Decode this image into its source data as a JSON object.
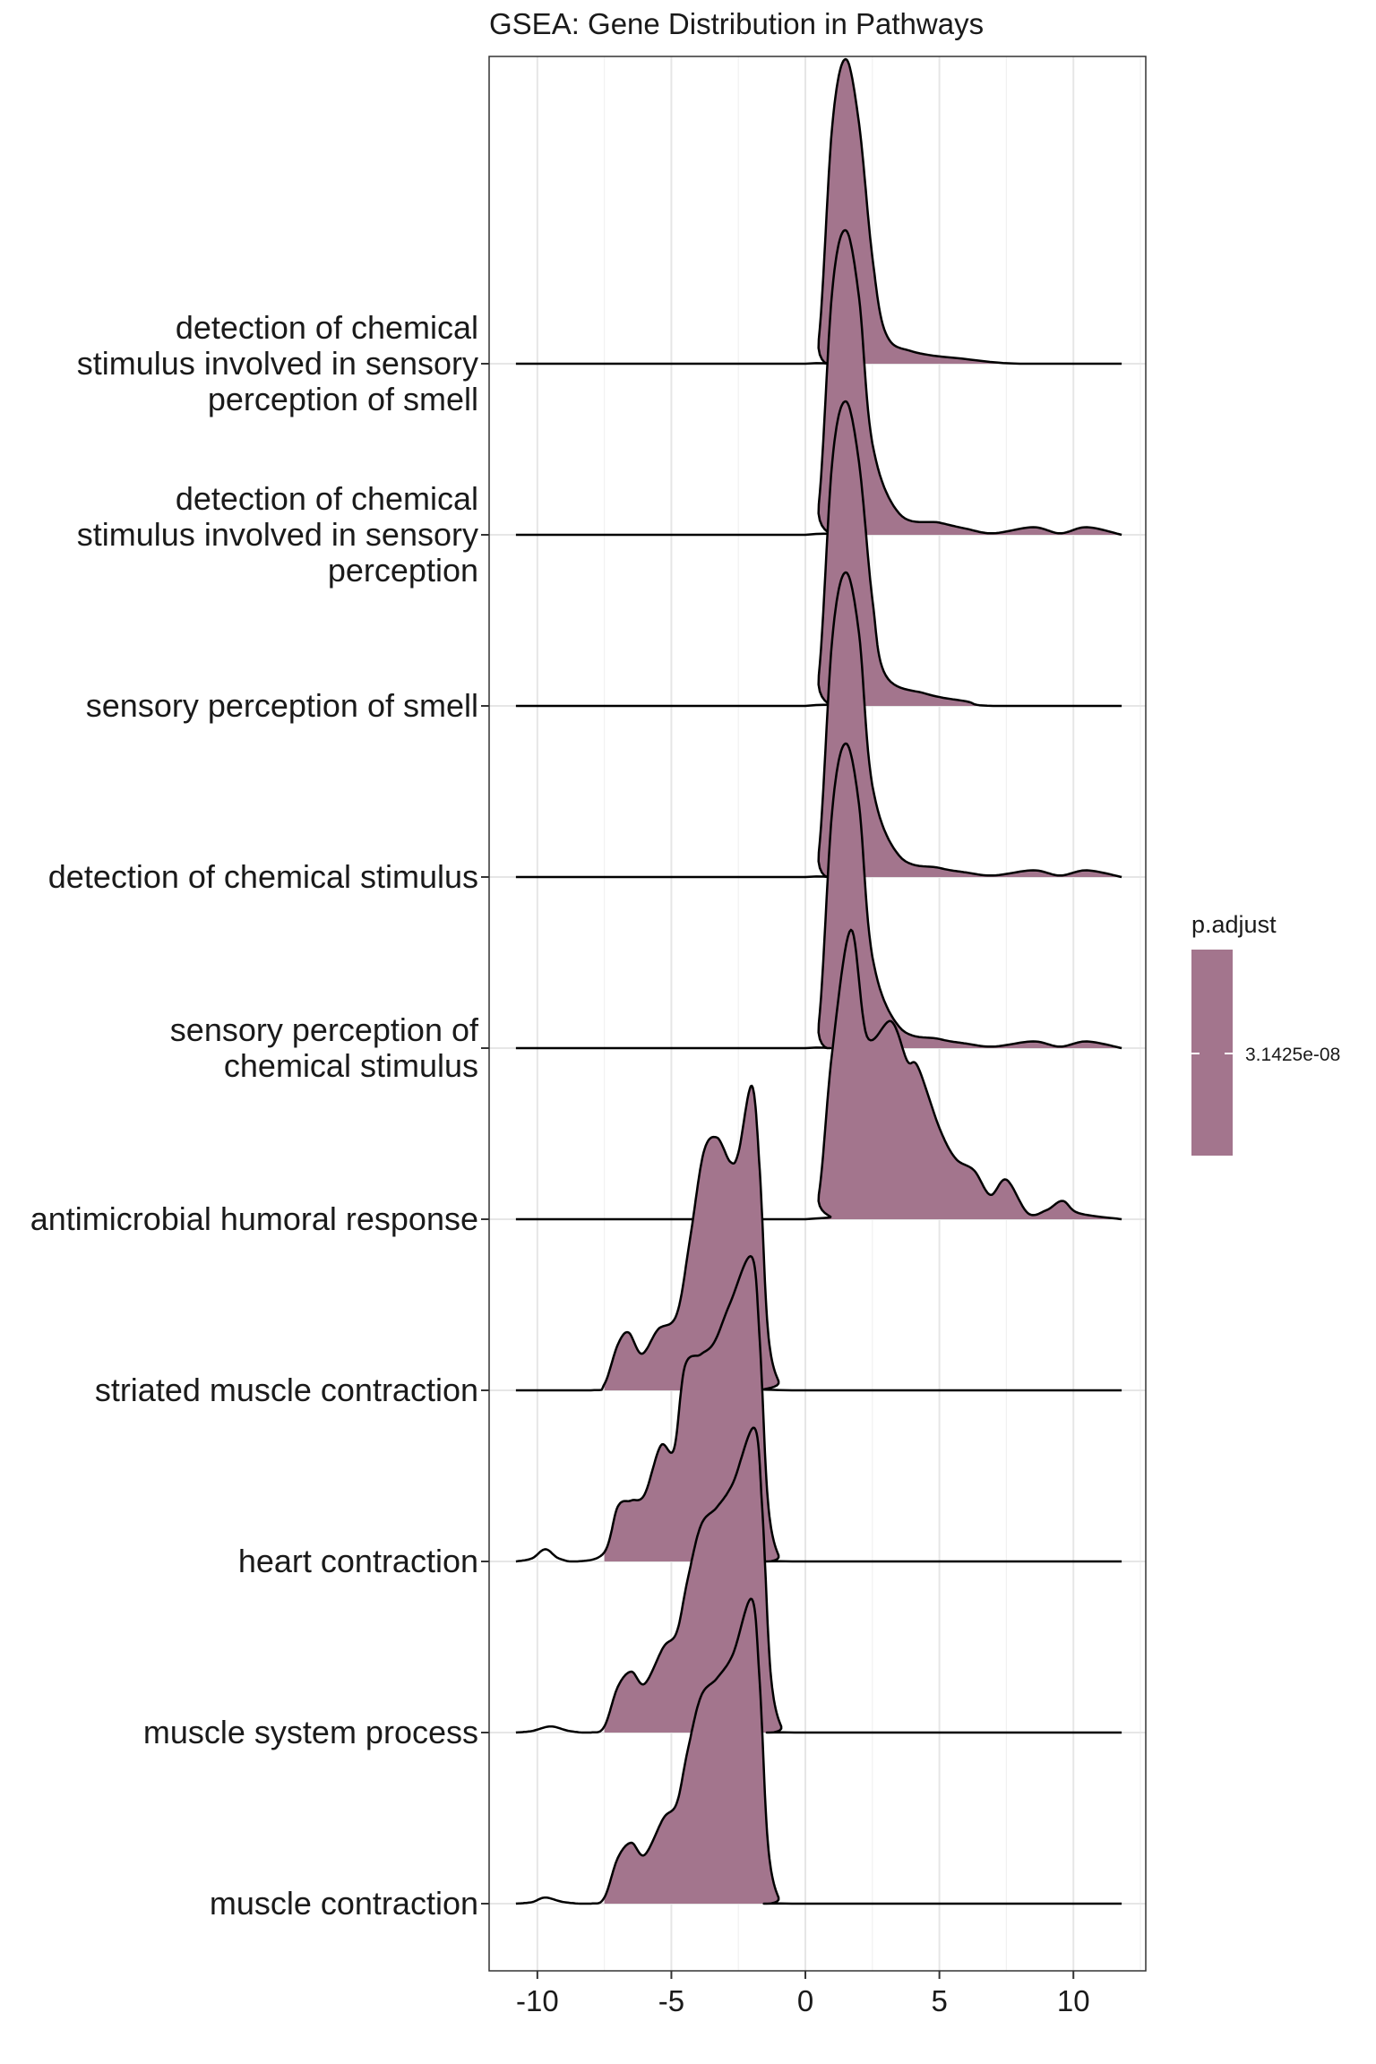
{
  "chart_data": {
    "type": "ridgeline",
    "title": "GSEA: Gene Distribution in Pathways",
    "xlabel": "",
    "ylabel": "",
    "xlim": [
      -11.8,
      12.7
    ],
    "x_ticks": [
      -10,
      -5,
      0,
      5,
      10
    ],
    "x_tick_labels": [
      "-10",
      "-5",
      "0",
      "5",
      "10"
    ],
    "grid": true,
    "fill_color": "#A3758D",
    "legend": {
      "title": "p.adjust",
      "tick_label": "3.1425e-08",
      "placement": "right"
    },
    "rows": [
      {
        "label_lines": [
          "detection of chemical",
          "stimulus involved in sensory",
          "perception of smell"
        ],
        "range": [
          -10.8,
          11.8
        ],
        "fill_range": [
          0,
          11.8
        ],
        "density": [
          [
            -10.8,
            0
          ],
          [
            0,
            0
          ],
          [
            0.5,
            0.08
          ],
          [
            1.0,
            0.78
          ],
          [
            1.5,
            1.0
          ],
          [
            2.0,
            0.79
          ],
          [
            2.5,
            0.35
          ],
          [
            3.0,
            0.1
          ],
          [
            4.0,
            0.04
          ],
          [
            6.0,
            0.015
          ],
          [
            8.0,
            0
          ],
          [
            11.8,
            0
          ]
        ]
      },
      {
        "label_lines": [
          "detection of chemical",
          "stimulus involved in sensory",
          "perception"
        ],
        "range": [
          -10.8,
          11.8
        ],
        "fill_range": [
          0,
          11.8
        ],
        "density": [
          [
            -10.8,
            0
          ],
          [
            0,
            0
          ],
          [
            0.5,
            0.1
          ],
          [
            1.0,
            0.8
          ],
          [
            1.5,
            1.0
          ],
          [
            2.0,
            0.78
          ],
          [
            2.5,
            0.3
          ],
          [
            3.5,
            0.07
          ],
          [
            5.0,
            0.04
          ],
          [
            6.0,
            0.02
          ],
          [
            7.0,
            0.005
          ],
          [
            8.5,
            0.025
          ],
          [
            9.5,
            0.005
          ],
          [
            10.5,
            0.025
          ],
          [
            11.8,
            0
          ]
        ]
      },
      {
        "label_lines": [
          "sensory perception of smell"
        ],
        "range": [
          -10.8,
          11.8
        ],
        "fill_range": [
          0,
          11.8
        ],
        "density": [
          [
            -10.8,
            0
          ],
          [
            0,
            0
          ],
          [
            0.5,
            0.1
          ],
          [
            1.0,
            0.8
          ],
          [
            1.5,
            1.0
          ],
          [
            2.0,
            0.8
          ],
          [
            2.5,
            0.35
          ],
          [
            3.0,
            0.1
          ],
          [
            4.5,
            0.04
          ],
          [
            6.0,
            0.015
          ],
          [
            7.0,
            0
          ],
          [
            11.8,
            0
          ]
        ]
      },
      {
        "label_lines": [
          "detection of chemical stimulus"
        ],
        "range": [
          -10.8,
          11.8
        ],
        "fill_range": [
          0,
          11.8
        ],
        "density": [
          [
            -10.8,
            0
          ],
          [
            0,
            0
          ],
          [
            0.5,
            0.08
          ],
          [
            1.0,
            0.78
          ],
          [
            1.5,
            1.0
          ],
          [
            2.0,
            0.8
          ],
          [
            2.5,
            0.3
          ],
          [
            3.5,
            0.07
          ],
          [
            5.0,
            0.03
          ],
          [
            6.0,
            0.015
          ],
          [
            7.0,
            0.005
          ],
          [
            8.5,
            0.022
          ],
          [
            9.5,
            0.005
          ],
          [
            10.5,
            0.022
          ],
          [
            11.8,
            0
          ]
        ]
      },
      {
        "label_lines": [
          "sensory perception of",
          "chemical stimulus"
        ],
        "range": [
          -10.8,
          11.8
        ],
        "fill_range": [
          0,
          11.8
        ],
        "density": [
          [
            -10.8,
            0
          ],
          [
            0,
            0
          ],
          [
            0.5,
            0.08
          ],
          [
            1.0,
            0.78
          ],
          [
            1.5,
            1.0
          ],
          [
            2.0,
            0.8
          ],
          [
            2.5,
            0.3
          ],
          [
            3.5,
            0.07
          ],
          [
            5.0,
            0.03
          ],
          [
            6.0,
            0.015
          ],
          [
            7.0,
            0.005
          ],
          [
            8.5,
            0.022
          ],
          [
            9.5,
            0.005
          ],
          [
            10.5,
            0.022
          ],
          [
            11.8,
            0
          ]
        ]
      },
      {
        "label_lines": [
          "antimicrobial humoral response"
        ],
        "range": [
          -10.8,
          11.8
        ],
        "fill_range": [
          0,
          11.8
        ],
        "density": [
          [
            -10.8,
            0
          ],
          [
            0,
            0
          ],
          [
            0.5,
            0.08
          ],
          [
            1.0,
            0.55
          ],
          [
            1.7,
            0.95
          ],
          [
            2.3,
            0.6
          ],
          [
            3.2,
            0.65
          ],
          [
            3.8,
            0.52
          ],
          [
            4.2,
            0.5
          ],
          [
            5.0,
            0.3
          ],
          [
            5.6,
            0.2
          ],
          [
            6.3,
            0.16
          ],
          [
            6.9,
            0.08
          ],
          [
            7.5,
            0.13
          ],
          [
            8.3,
            0.02
          ],
          [
            9.0,
            0.03
          ],
          [
            9.6,
            0.06
          ],
          [
            10.2,
            0.02
          ],
          [
            11.8,
            0
          ]
        ]
      },
      {
        "label_lines": [
          "striated muscle contraction"
        ],
        "range": [
          -10.8,
          11.8
        ],
        "fill_range": [
          -7.5,
          11.8
        ],
        "density": [
          [
            -10.8,
            0
          ],
          [
            -8.0,
            0
          ],
          [
            -7.5,
            0.02
          ],
          [
            -7.0,
            0.15
          ],
          [
            -6.6,
            0.19
          ],
          [
            -6.1,
            0.12
          ],
          [
            -5.5,
            0.2
          ],
          [
            -4.8,
            0.25
          ],
          [
            -4.3,
            0.5
          ],
          [
            -3.8,
            0.78
          ],
          [
            -3.3,
            0.83
          ],
          [
            -2.8,
            0.75
          ],
          [
            -2.5,
            0.78
          ],
          [
            -2.0,
            1.0
          ],
          [
            -1.7,
            0.72
          ],
          [
            -1.4,
            0.2
          ],
          [
            -1.0,
            0.03
          ],
          [
            -0.5,
            0
          ],
          [
            11.8,
            0
          ]
        ]
      },
      {
        "label_lines": [
          "heart contraction"
        ],
        "range": [
          -10.8,
          11.8
        ],
        "fill_range": [
          -7.5,
          11.8
        ],
        "density": [
          [
            -10.8,
            0
          ],
          [
            -10.2,
            0.01
          ],
          [
            -9.7,
            0.04
          ],
          [
            -9.2,
            0.01
          ],
          [
            -8.5,
            0
          ],
          [
            -7.5,
            0.03
          ],
          [
            -7.0,
            0.18
          ],
          [
            -6.5,
            0.2
          ],
          [
            -6.0,
            0.22
          ],
          [
            -5.4,
            0.38
          ],
          [
            -4.9,
            0.37
          ],
          [
            -4.5,
            0.64
          ],
          [
            -3.9,
            0.68
          ],
          [
            -3.4,
            0.72
          ],
          [
            -2.8,
            0.85
          ],
          [
            -2.0,
            1.0
          ],
          [
            -1.7,
            0.72
          ],
          [
            -1.4,
            0.2
          ],
          [
            -1.0,
            0.02
          ],
          [
            -0.5,
            0
          ],
          [
            11.8,
            0
          ]
        ]
      },
      {
        "label_lines": [
          "muscle system process"
        ],
        "range": [
          -10.8,
          11.8
        ],
        "fill_range": [
          -7.5,
          11.8
        ],
        "density": [
          [
            -10.8,
            0
          ],
          [
            -10.2,
            0.005
          ],
          [
            -9.5,
            0.02
          ],
          [
            -8.8,
            0.005
          ],
          [
            -8.0,
            0
          ],
          [
            -7.5,
            0.02
          ],
          [
            -7.0,
            0.15
          ],
          [
            -6.5,
            0.2
          ],
          [
            -6.0,
            0.16
          ],
          [
            -5.3,
            0.28
          ],
          [
            -4.8,
            0.33
          ],
          [
            -4.4,
            0.5
          ],
          [
            -3.9,
            0.68
          ],
          [
            -3.3,
            0.74
          ],
          [
            -2.7,
            0.82
          ],
          [
            -1.9,
            1.0
          ],
          [
            -1.6,
            0.72
          ],
          [
            -1.3,
            0.2
          ],
          [
            -0.9,
            0.02
          ],
          [
            -0.4,
            0
          ],
          [
            11.8,
            0
          ]
        ]
      },
      {
        "label_lines": [
          "muscle contraction"
        ],
        "range": [
          -10.8,
          11.8
        ],
        "fill_range": [
          -7.5,
          11.8
        ],
        "density": [
          [
            -10.8,
            0
          ],
          [
            -10.2,
            0.005
          ],
          [
            -9.7,
            0.02
          ],
          [
            -9.0,
            0.005
          ],
          [
            -8.0,
            0
          ],
          [
            -7.5,
            0.02
          ],
          [
            -7.0,
            0.15
          ],
          [
            -6.5,
            0.2
          ],
          [
            -6.0,
            0.16
          ],
          [
            -5.3,
            0.28
          ],
          [
            -4.8,
            0.33
          ],
          [
            -4.4,
            0.5
          ],
          [
            -3.9,
            0.68
          ],
          [
            -3.3,
            0.74
          ],
          [
            -2.7,
            0.82
          ],
          [
            -2.0,
            1.0
          ],
          [
            -1.7,
            0.72
          ],
          [
            -1.4,
            0.2
          ],
          [
            -1.0,
            0.02
          ],
          [
            -0.5,
            0
          ],
          [
            11.8,
            0
          ]
        ]
      }
    ]
  }
}
